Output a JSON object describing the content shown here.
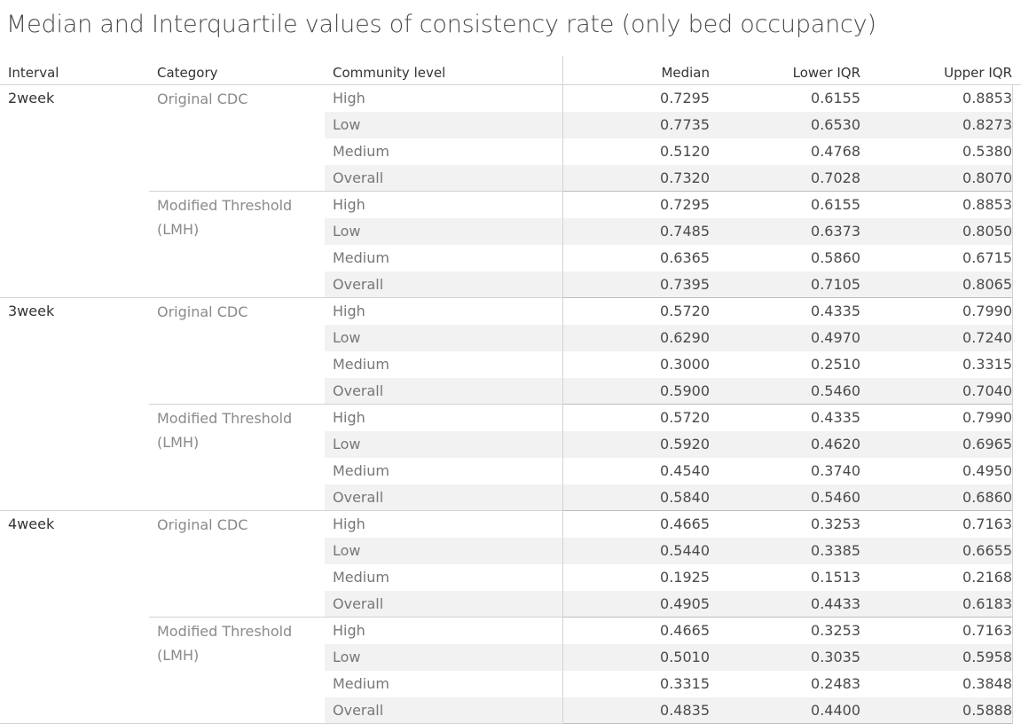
{
  "title": "Median and Interquartile values of consistency rate (only bed occupancy)",
  "chart_data": {
    "type": "table",
    "title": "Median and Interquartile values of consistency rate (only bed occupancy)",
    "columns": [
      "Interval",
      "Category",
      "Community level",
      "Median",
      "Lower IQR",
      "Upper IQR"
    ],
    "groups": [
      {
        "interval": "2week",
        "categories": [
          {
            "category": "Original CDC",
            "rows": [
              {
                "level": "High",
                "median": "0.7295",
                "lower": "0.6155",
                "upper": "0.8853"
              },
              {
                "level": "Low",
                "median": "0.7735",
                "lower": "0.6530",
                "upper": "0.8273"
              },
              {
                "level": "Medium",
                "median": "0.5120",
                "lower": "0.4768",
                "upper": "0.5380"
              },
              {
                "level": "Overall",
                "median": "0.7320",
                "lower": "0.7028",
                "upper": "0.8070"
              }
            ]
          },
          {
            "category": "Modified Threshold (LMH)",
            "rows": [
              {
                "level": "High",
                "median": "0.7295",
                "lower": "0.6155",
                "upper": "0.8853"
              },
              {
                "level": "Low",
                "median": "0.7485",
                "lower": "0.6373",
                "upper": "0.8050"
              },
              {
                "level": "Medium",
                "median": "0.6365",
                "lower": "0.5860",
                "upper": "0.6715"
              },
              {
                "level": "Overall",
                "median": "0.7395",
                "lower": "0.7105",
                "upper": "0.8065"
              }
            ]
          }
        ]
      },
      {
        "interval": "3week",
        "categories": [
          {
            "category": "Original CDC",
            "rows": [
              {
                "level": "High",
                "median": "0.5720",
                "lower": "0.4335",
                "upper": "0.7990"
              },
              {
                "level": "Low",
                "median": "0.6290",
                "lower": "0.4970",
                "upper": "0.7240"
              },
              {
                "level": "Medium",
                "median": "0.3000",
                "lower": "0.2510",
                "upper": "0.3315"
              },
              {
                "level": "Overall",
                "median": "0.5900",
                "lower": "0.5460",
                "upper": "0.7040"
              }
            ]
          },
          {
            "category": "Modified Threshold (LMH)",
            "rows": [
              {
                "level": "High",
                "median": "0.5720",
                "lower": "0.4335",
                "upper": "0.7990"
              },
              {
                "level": "Low",
                "median": "0.5920",
                "lower": "0.4620",
                "upper": "0.6965"
              },
              {
                "level": "Medium",
                "median": "0.4540",
                "lower": "0.3740",
                "upper": "0.4950"
              },
              {
                "level": "Overall",
                "median": "0.5840",
                "lower": "0.5460",
                "upper": "0.6860"
              }
            ]
          }
        ]
      },
      {
        "interval": "4week",
        "categories": [
          {
            "category": "Original CDC",
            "rows": [
              {
                "level": "High",
                "median": "0.4665",
                "lower": "0.3253",
                "upper": "0.7163"
              },
              {
                "level": "Low",
                "median": "0.5440",
                "lower": "0.3385",
                "upper": "0.6655"
              },
              {
                "level": "Medium",
                "median": "0.1925",
                "lower": "0.1513",
                "upper": "0.2168"
              },
              {
                "level": "Overall",
                "median": "0.4905",
                "lower": "0.4433",
                "upper": "0.6183"
              }
            ]
          },
          {
            "category": "Modified Threshold (LMH)",
            "rows": [
              {
                "level": "High",
                "median": "0.4665",
                "lower": "0.3253",
                "upper": "0.7163"
              },
              {
                "level": "Low",
                "median": "0.5010",
                "lower": "0.3035",
                "upper": "0.5958"
              },
              {
                "level": "Medium",
                "median": "0.3315",
                "lower": "0.2483",
                "upper": "0.3848"
              },
              {
                "level": "Overall",
                "median": "0.4835",
                "lower": "0.4400",
                "upper": "0.5888"
              }
            ]
          }
        ]
      }
    ],
    "colors": {
      "band": "#f2f2f2",
      "separator": "#d3d3d3",
      "text": "#4a4a4a"
    }
  }
}
